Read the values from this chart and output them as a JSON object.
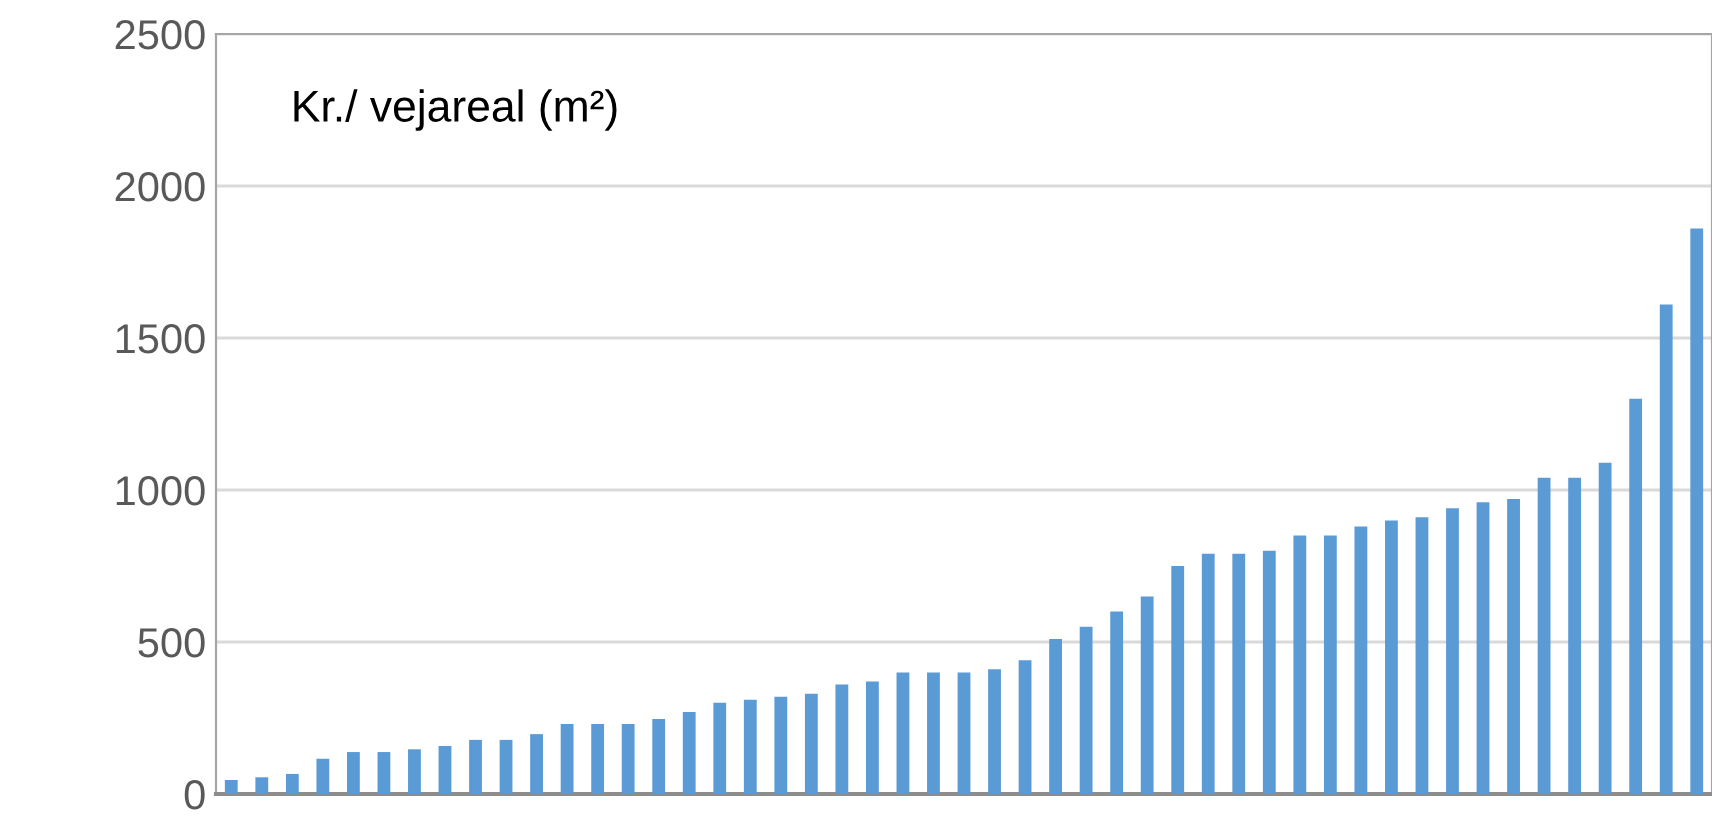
{
  "chart_data": {
    "type": "bar",
    "title": "Kr./ vejareal (m²)",
    "categories": [
      null,
      null,
      null,
      null,
      null,
      null,
      null,
      null,
      null,
      null,
      null,
      null,
      null,
      null,
      null,
      null,
      null,
      null,
      null,
      null,
      null,
      null,
      null,
      null,
      null,
      null,
      null,
      null,
      null,
      null,
      null,
      null,
      null,
      null,
      null,
      null,
      null,
      null,
      null,
      null,
      null,
      null,
      null,
      null,
      null,
      null,
      null,
      null,
      null
    ],
    "values": [
      46,
      55,
      66,
      116,
      138,
      138,
      147,
      158,
      178,
      178,
      197,
      230,
      230,
      230,
      247,
      270,
      300,
      310,
      320,
      330,
      360,
      370,
      400,
      400,
      400,
      410,
      440,
      510,
      550,
      600,
      650,
      750,
      790,
      790,
      800,
      850,
      850,
      880,
      900,
      910,
      940,
      960,
      970,
      1040,
      1040,
      1090,
      1300,
      1610,
      1860
    ],
    "color": "#5b9bd5",
    "ylim": [
      0,
      2500
    ],
    "yticks": [
      0,
      500,
      1000,
      1500,
      2000,
      2500
    ],
    "grid": "y",
    "tick_labels": "y"
  }
}
